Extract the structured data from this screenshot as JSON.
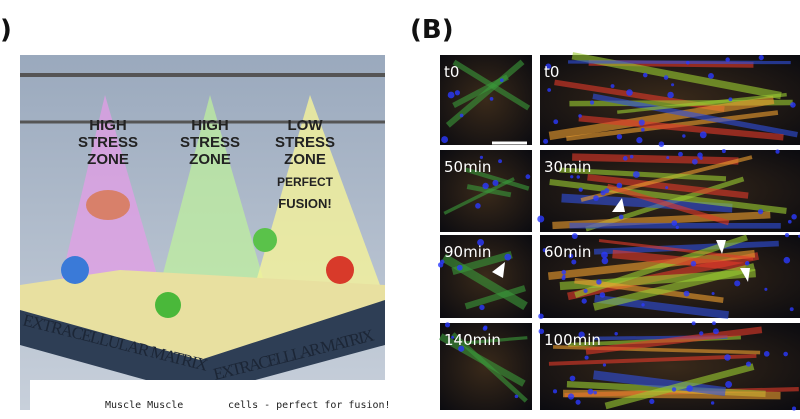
{
  "panel_a": {
    "label": ")",
    "zones": [
      [
        "HIGH",
        "STRESS",
        "ZONE"
      ],
      [
        "HIGH",
        "STRESS",
        "ZONE"
      ],
      [
        "LOW",
        "STRESS",
        "ZONE",
        "PERFECT",
        "FUSION!"
      ]
    ],
    "banners": [
      "EXTRACELLULAR MATRIX",
      "EXTRACELLLAR MATRIX"
    ],
    "captions": [
      "Muscle Muscle",
      "cells - perfect for fusion!"
    ]
  },
  "panel_b": {
    "label": "(B)",
    "columns": [
      {
        "frames": [
          "t0",
          "50min",
          "90min",
          "140min"
        ]
      },
      {
        "frames": [
          "t0",
          "30min",
          "60min",
          "100min"
        ]
      }
    ]
  }
}
